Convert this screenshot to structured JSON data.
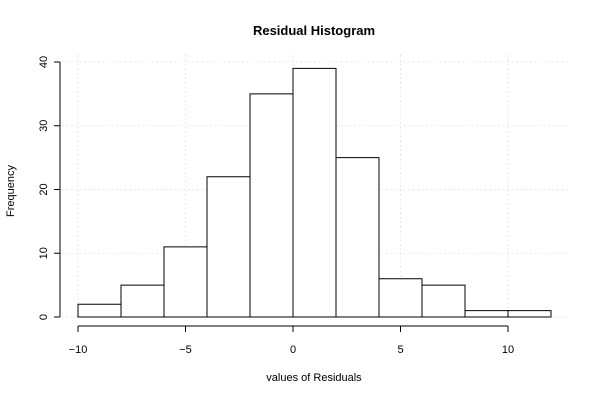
{
  "chart_data": {
    "type": "bar",
    "title": "Residual Histogram",
    "xlabel": "values of Residuals",
    "ylabel": "Frequency",
    "bins": [
      {
        "start": -10,
        "end": -8,
        "count": 2
      },
      {
        "start": -8,
        "end": -6,
        "count": 5
      },
      {
        "start": -6,
        "end": -4,
        "count": 11
      },
      {
        "start": -4,
        "end": -2,
        "count": 22
      },
      {
        "start": -2,
        "end": 0,
        "count": 35
      },
      {
        "start": 0,
        "end": 2,
        "count": 39
      },
      {
        "start": 2,
        "end": 4,
        "count": 25
      },
      {
        "start": 4,
        "end": 6,
        "count": 6
      },
      {
        "start": 6,
        "end": 8,
        "count": 5
      },
      {
        "start": 8,
        "end": 10,
        "count": 1
      },
      {
        "start": 10,
        "end": 12,
        "count": 1
      }
    ],
    "xlim": [
      -10,
      12
    ],
    "ylim": [
      0,
      40
    ],
    "xticks": [
      -10,
      -5,
      0,
      5,
      10
    ],
    "xtick_labels": [
      "−10",
      "−5",
      "0",
      "5",
      "10"
    ],
    "yticks": [
      0,
      10,
      20,
      30,
      40
    ],
    "ytick_labels": [
      "0",
      "10",
      "20",
      "30",
      "40"
    ],
    "grid": true
  }
}
